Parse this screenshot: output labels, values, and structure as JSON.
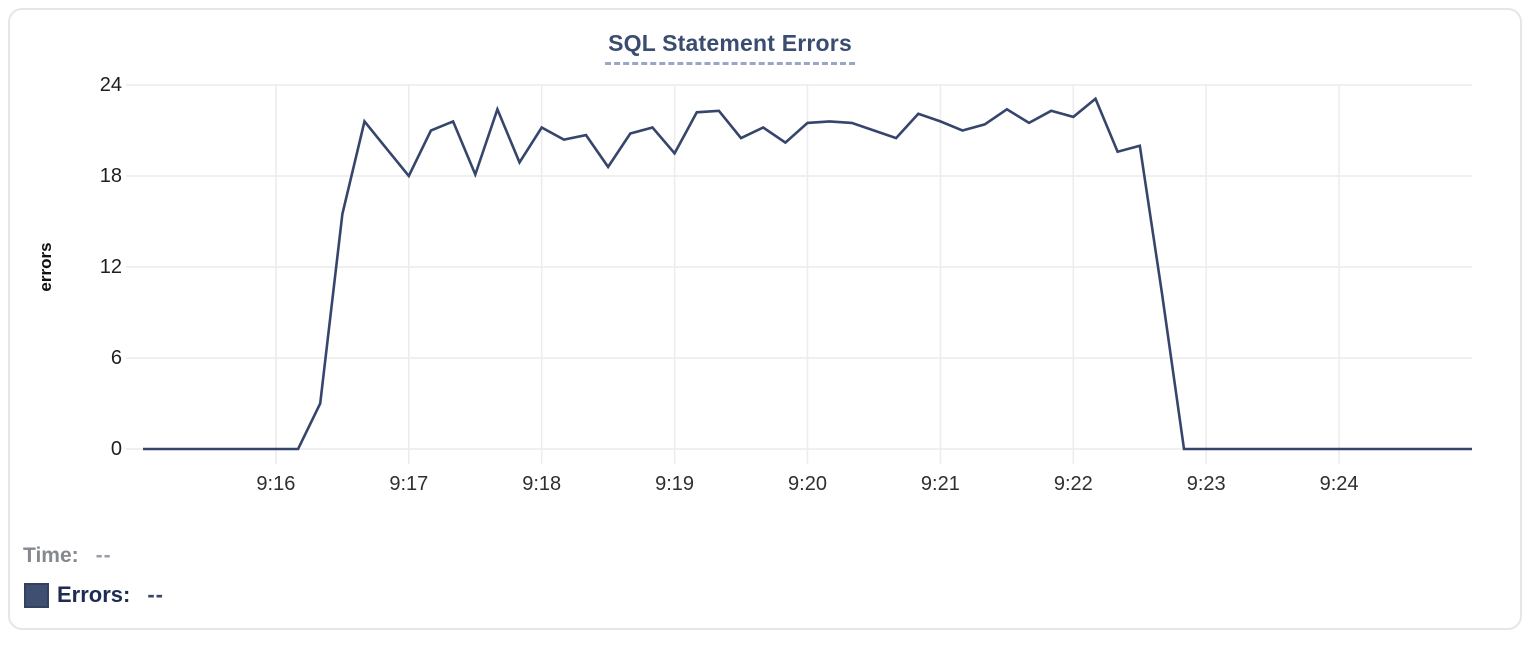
{
  "chart_data": {
    "type": "line",
    "title": "SQL Statement Errors",
    "xlabel": "",
    "ylabel": "errors",
    "x_tick_labels": [
      "9:16",
      "9:17",
      "9:18",
      "9:19",
      "9:20",
      "9:21",
      "9:22",
      "9:23",
      "9:24"
    ],
    "y_ticks": [
      0,
      6,
      12,
      18,
      24
    ],
    "ylim": [
      0,
      24
    ],
    "x_start": "9:15:00",
    "x_end": "9:25:00",
    "sample_interval_seconds": 10,
    "grid": true,
    "series": [
      {
        "name": "Errors",
        "color": "#36456b",
        "times": [
          "9:15:00",
          "9:15:10",
          "9:15:20",
          "9:15:30",
          "9:15:40",
          "9:15:50",
          "9:16:00",
          "9:16:10",
          "9:16:20",
          "9:16:30",
          "9:16:40",
          "9:16:50",
          "9:17:00",
          "9:17:10",
          "9:17:20",
          "9:17:30",
          "9:17:40",
          "9:17:50",
          "9:18:00",
          "9:18:10",
          "9:18:20",
          "9:18:30",
          "9:18:40",
          "9:18:50",
          "9:19:00",
          "9:19:10",
          "9:19:20",
          "9:19:30",
          "9:19:40",
          "9:19:50",
          "9:20:00",
          "9:20:10",
          "9:20:20",
          "9:20:30",
          "9:20:40",
          "9:20:50",
          "9:21:00",
          "9:21:10",
          "9:21:20",
          "9:21:30",
          "9:21:40",
          "9:21:50",
          "9:22:00",
          "9:22:10",
          "9:22:20",
          "9:22:30",
          "9:22:40",
          "9:22:50",
          "9:23:00",
          "9:23:10",
          "9:23:20",
          "9:23:30",
          "9:23:40",
          "9:23:50",
          "9:24:00",
          "9:24:10",
          "9:24:20",
          "9:24:30",
          "9:24:40",
          "9:24:50",
          "9:25:00"
        ],
        "values": [
          0,
          0,
          0,
          0,
          0,
          0,
          0,
          0,
          3,
          15.5,
          21.6,
          19.8,
          18,
          21,
          21.6,
          18.1,
          22.4,
          18.9,
          21.2,
          20.4,
          20.7,
          18.6,
          20.8,
          21.2,
          19.5,
          22.2,
          22.3,
          20.5,
          21.2,
          20.2,
          21.5,
          21.6,
          21.5,
          21,
          20.5,
          22.1,
          21.6,
          21,
          21.4,
          22.4,
          21.5,
          22.3,
          21.9,
          23.1,
          19.6,
          20,
          10.3,
          0,
          0,
          0,
          0,
          0,
          0,
          0,
          0,
          0,
          0,
          0,
          0,
          0,
          0
        ]
      }
    ],
    "legend_position": "bottom-left"
  },
  "legend": {
    "time_label": "Time:",
    "time_value": "--",
    "errors_label": "Errors:",
    "errors_value": "--",
    "errors_swatch_color": "#3e5072"
  },
  "colors": {
    "line": "#36456b",
    "gridline": "#ececec",
    "title": "#3a4c70",
    "title_underline": "#99a6c4"
  }
}
